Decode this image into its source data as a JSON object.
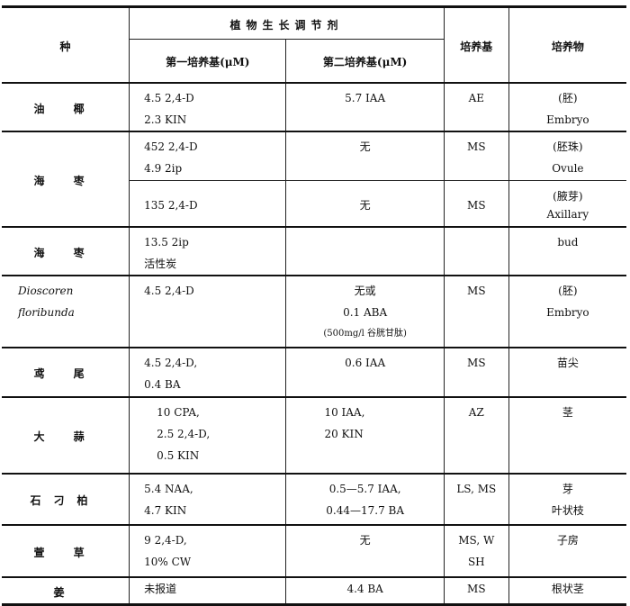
{
  "header": {
    "species": "种",
    "regulators": "植物生长调节剂",
    "first_medium": "第一培养基(μM)",
    "second_medium": "第二培养基(μM)",
    "medium": "培养基",
    "explant": "培养物"
  },
  "rows": [
    {
      "species": "油 椰",
      "first": [
        "4.5 2,4-D",
        "2.3 KIN"
      ],
      "second": [
        "5.7 IAA"
      ],
      "medium": [
        "AE"
      ],
      "explant": [
        "(胚)",
        "Embryo"
      ]
    },
    {
      "species": "海 枣",
      "first": [
        "452 2,4-D",
        "4.9 2ip"
      ],
      "second": [
        "无"
      ],
      "medium": [
        "MS"
      ],
      "explant": [
        "(胚珠)",
        "Ovule"
      ]
    },
    {
      "species": "",
      "first": [
        "135 2,4-D"
      ],
      "second": [
        "无"
      ],
      "medium": [
        "MS"
      ],
      "explant": [
        "(腋芽)",
        "Axillary"
      ]
    },
    {
      "species": "海 枣",
      "first": [
        "13.5 2ip",
        "活性炭"
      ],
      "second": [],
      "medium": [],
      "explant": [
        "bud"
      ]
    },
    {
      "species": "Dioscoren floribunda",
      "first": [
        "4.5 2,4-D"
      ],
      "second": [
        "无或",
        "0.1 ABA",
        "(500mg/l 谷胱甘肽)"
      ],
      "medium": [
        "MS"
      ],
      "explant": [
        "(胚)",
        "Embryo"
      ]
    },
    {
      "species": "鸢 尾",
      "first": [
        "4.5 2,4-D,",
        "0.4 BA"
      ],
      "second": [
        "0.6 IAA"
      ],
      "medium": [
        "MS"
      ],
      "explant": [
        "苗尖"
      ]
    },
    {
      "species": "大 蒜",
      "first": [
        "10 CPA,",
        "2.5 2,4-D,",
        "0.5 KIN"
      ],
      "second": [
        "10 IAA,",
        "20 KIN"
      ],
      "medium": [
        "AZ"
      ],
      "explant": [
        "茎"
      ]
    },
    {
      "species": "石刁柏",
      "first": [
        "5.4 NAA,",
        "4.7 KIN"
      ],
      "second": [
        "0.5—5.7 IAA,",
        "0.44—17.7 BA"
      ],
      "medium": [
        "LS, MS"
      ],
      "explant": [
        "芽",
        "叶状枝"
      ]
    },
    {
      "species": "萱 草",
      "first": [
        "9 2,4-D,",
        "10% CW"
      ],
      "second": [
        "无"
      ],
      "medium": [
        "MS, W",
        "SH"
      ],
      "explant": [
        "子房"
      ]
    },
    {
      "species": "姜",
      "first": [
        "未报道"
      ],
      "second": [
        "4.4 BA"
      ],
      "medium": [
        "MS"
      ],
      "explant": [
        "根状茎"
      ]
    }
  ]
}
